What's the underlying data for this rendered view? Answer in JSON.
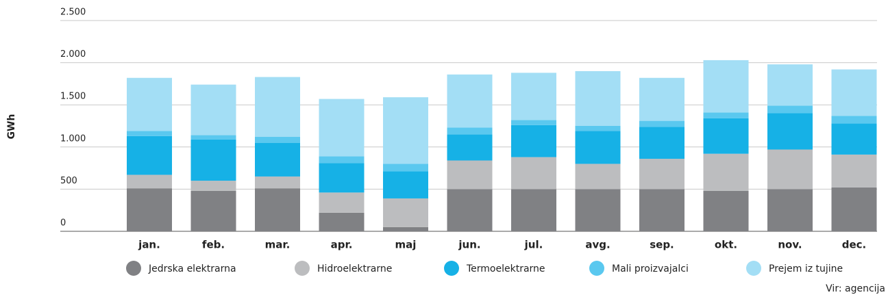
{
  "chart_data": {
    "type": "stacked_bar",
    "y_label": "GWh",
    "source": "Vir: agencija",
    "categories": [
      "jan.",
      "feb.",
      "mar.",
      "apr.",
      "maj",
      "jun.",
      "jul.",
      "avg.",
      "sep.",
      "okt.",
      "nov.",
      "dec."
    ],
    "series": [
      {
        "name": "Jedrska elektrarna",
        "color": "#808184",
        "values": [
          510,
          480,
          510,
          220,
          50,
          500,
          500,
          500,
          500,
          480,
          500,
          520
        ]
      },
      {
        "name": "Hidroelektrarne",
        "color": "#bcbdbf",
        "values": [
          160,
          120,
          140,
          240,
          340,
          340,
          380,
          300,
          360,
          440,
          470,
          390
        ]
      },
      {
        "name": "Termoelektrarne",
        "color": "#16b1e6",
        "values": [
          460,
          490,
          400,
          350,
          320,
          310,
          380,
          390,
          380,
          420,
          430,
          370
        ]
      },
      {
        "name": "Mali proizvajalci",
        "color": "#5ac8ef",
        "values": [
          60,
          50,
          70,
          80,
          90,
          80,
          60,
          60,
          70,
          70,
          90,
          90
        ]
      },
      {
        "name": "Prejem iz tujine",
        "color": "#a3def5",
        "values": [
          630,
          600,
          710,
          680,
          790,
          630,
          560,
          650,
          510,
          620,
          490,
          550
        ]
      }
    ],
    "ylim": [
      0,
      2500
    ],
    "yticks": [
      0,
      500,
      {
        "value": 1000,
        "label": "1.000"
      },
      {
        "value": 1500,
        "label": "1.500"
      },
      {
        "value": 2000,
        "label": "2.000"
      },
      {
        "value": 2500,
        "label": "2.500"
      }
    ],
    "grid": true
  }
}
